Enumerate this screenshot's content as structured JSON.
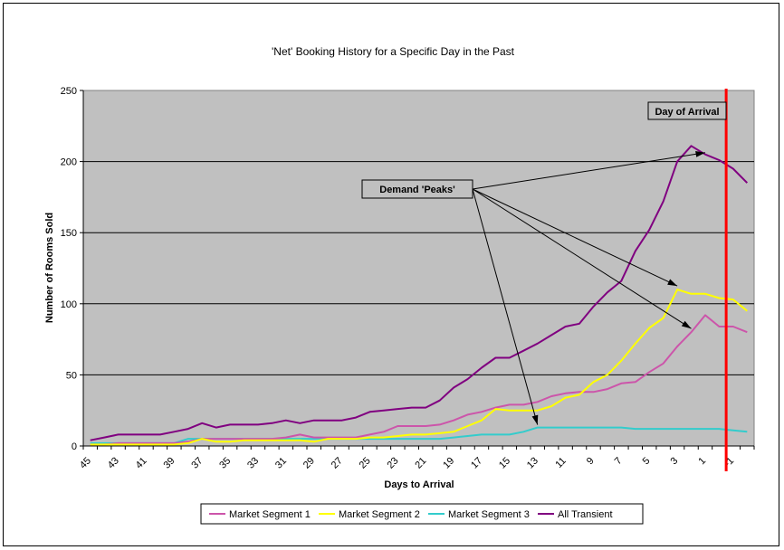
{
  "chart_data": {
    "type": "line",
    "title": "'Net' Booking History for a Specific Day in the Past",
    "xlabel": "Days to Arrival",
    "ylabel": "Number of Rooms Sold",
    "ylim": [
      0,
      250
    ],
    "yticks": [
      0,
      50,
      100,
      150,
      200,
      250
    ],
    "x": [
      45,
      44,
      43,
      42,
      41,
      40,
      39,
      38,
      37,
      36,
      35,
      34,
      33,
      32,
      31,
      30,
      29,
      28,
      27,
      26,
      25,
      24,
      23,
      22,
      21,
      20,
      19,
      18,
      17,
      16,
      15,
      14,
      13,
      12,
      11,
      10,
      9,
      8,
      7,
      6,
      5,
      4,
      3,
      2,
      1,
      0,
      -1,
      -2
    ],
    "x_tick_labels": [
      "45",
      "43",
      "41",
      "39",
      "37",
      "35",
      "33",
      "31",
      "29",
      "27",
      "25",
      "23",
      "21",
      "19",
      "17",
      "15",
      "13",
      "11",
      "9",
      "7",
      "5",
      "3",
      "1",
      "-1"
    ],
    "grid": "horizontal",
    "legend_position": "bottom",
    "colors": {
      "plot_background": "#c0c0c0",
      "arrival_line": "#ff0000"
    },
    "series": [
      {
        "name": "Market Segment 1",
        "color": "#cc55aa",
        "values": [
          1,
          1,
          2,
          2,
          2,
          2,
          2,
          3,
          5,
          5,
          5,
          5,
          5,
          5,
          6,
          8,
          6,
          6,
          6,
          6,
          8,
          10,
          14,
          14,
          14,
          15,
          18,
          22,
          24,
          27,
          29,
          29,
          31,
          35,
          37,
          38,
          38,
          40,
          44,
          45,
          52,
          58,
          70,
          80,
          92,
          84,
          84,
          80
        ]
      },
      {
        "name": "Market Segment 2",
        "color": "#ffff00",
        "values": [
          1,
          1,
          1,
          1,
          1,
          1,
          1,
          2,
          5,
          3,
          3,
          4,
          4,
          4,
          4,
          4,
          3,
          5,
          5,
          5,
          6,
          6,
          7,
          8,
          8,
          9,
          10,
          14,
          18,
          26,
          25,
          25,
          25,
          28,
          34,
          36,
          45,
          50,
          60,
          72,
          83,
          90,
          110,
          107,
          107,
          104,
          103,
          95
        ]
      },
      {
        "name": "Market Segment 3",
        "color": "#33cccc",
        "values": [
          2,
          2,
          2,
          2,
          2,
          2,
          2,
          5,
          5,
          5,
          5,
          5,
          5,
          5,
          5,
          5,
          5,
          5,
          5,
          5,
          5,
          5,
          5,
          5,
          5,
          5,
          6,
          7,
          8,
          8,
          8,
          10,
          13,
          13,
          13,
          13,
          13,
          13,
          13,
          12,
          12,
          12,
          12,
          12,
          12,
          12,
          11,
          10
        ]
      },
      {
        "name": "All Transient",
        "color": "#800080",
        "values": [
          4,
          6,
          8,
          8,
          8,
          8,
          10,
          12,
          16,
          13,
          15,
          15,
          15,
          16,
          18,
          16,
          18,
          18,
          18,
          20,
          24,
          25,
          26,
          27,
          27,
          32,
          41,
          47,
          55,
          62,
          62,
          67,
          72,
          78,
          84,
          86,
          98,
          108,
          116,
          137,
          152,
          172,
          200,
          211,
          205,
          201,
          195,
          185
        ]
      }
    ],
    "annotations": [
      {
        "text": "Day of Arrival"
      },
      {
        "text": "Demand 'Peaks'"
      }
    ]
  }
}
